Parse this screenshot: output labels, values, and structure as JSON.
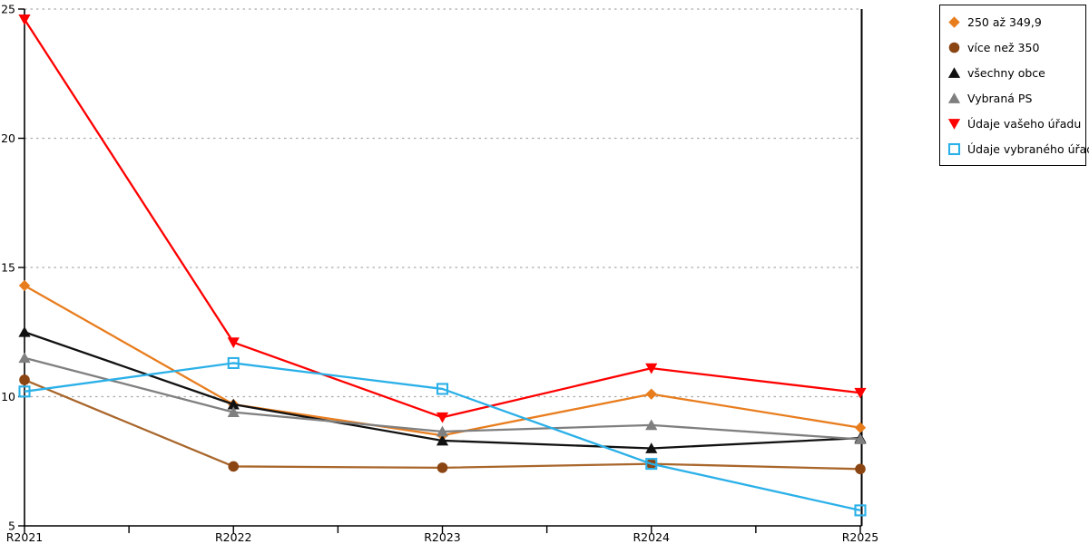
{
  "chart_data": {
    "type": "line",
    "categories": [
      "R2021",
      "R2022",
      "R2023",
      "R2024",
      "R2025"
    ],
    "ylim": [
      5,
      25
    ],
    "yticks": [
      5,
      10,
      15,
      20,
      25
    ],
    "grid": {
      "axis": "y",
      "style": "dotted",
      "color": "#ABABAB"
    },
    "axis_color": "#000000",
    "legend_position": "top-right",
    "series": [
      {
        "name": "250 až 349,9",
        "marker": "diamond",
        "color": "#E87D1E",
        "values": [
          14.3,
          9.7,
          8.5,
          10.1,
          8.8
        ]
      },
      {
        "name": "více než 350",
        "marker": "circle",
        "color": "#8B4513",
        "line_color": "#A9662B",
        "values": [
          10.65,
          7.3,
          7.25,
          7.4,
          7.2
        ]
      },
      {
        "name": "všechny obce",
        "marker": "triangle-up",
        "color": "#111111",
        "values": [
          12.5,
          9.7,
          8.3,
          8.0,
          8.4
        ]
      },
      {
        "name": "Vybraná PS",
        "marker": "triangle-up",
        "color": "#7F7F7F",
        "values": [
          11.5,
          9.4,
          8.65,
          8.9,
          8.35
        ]
      },
      {
        "name": "Údaje vašeho úřadu",
        "marker": "triangle-down",
        "color": "#FF0000",
        "values": [
          24.6,
          12.1,
          9.2,
          11.1,
          10.15
        ]
      },
      {
        "name": "Údaje vybraného úřadu",
        "marker": "square-open",
        "color": "#2BB0E8",
        "values": [
          10.2,
          11.3,
          10.3,
          7.4,
          5.6
        ]
      }
    ]
  }
}
